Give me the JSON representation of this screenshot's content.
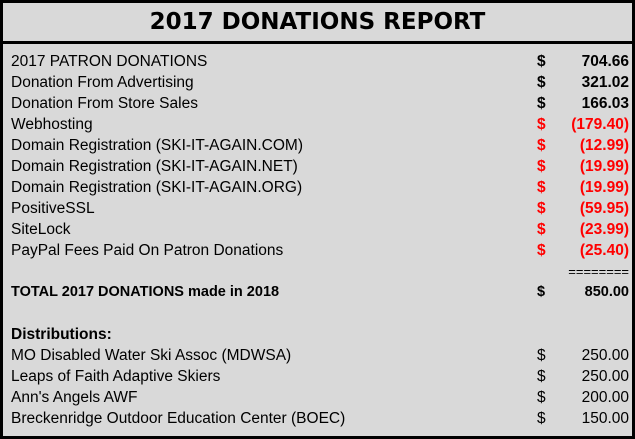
{
  "report": {
    "title": "2017 DONATIONS REPORT",
    "items": [
      {
        "label": "2017 PATRON DONATIONS",
        "currency": "$",
        "amount": "704.66"
      },
      {
        "label": "Donation From Advertising",
        "currency": "$",
        "amount": "321.02"
      },
      {
        "label": "Donation From Store Sales",
        "currency": "$",
        "amount": "166.03"
      },
      {
        "label": "Webhosting",
        "currency": "$",
        "amount": "(179.40)"
      },
      {
        "label": "Domain Registration (SKI-IT-AGAIN.COM)",
        "currency": "$",
        "amount": "(12.99)"
      },
      {
        "label": "Domain Registration (SKI-IT-AGAIN.NET)",
        "currency": "$",
        "amount": "(19.99)"
      },
      {
        "label": "Domain Registration (SKI-IT-AGAIN.ORG)",
        "currency": "$",
        "amount": "(19.99)"
      },
      {
        "label": "PositiveSSL",
        "currency": "$",
        "amount": "(59.95)"
      },
      {
        "label": "SiteLock",
        "currency": "$",
        "amount": "(23.99)"
      },
      {
        "label": "PayPal Fees Paid On Patron Donations",
        "currency": "$",
        "amount": "(25.40)"
      }
    ],
    "separator": "========",
    "total": {
      "label": "TOTAL 2017 DONATIONS made in 2018",
      "currency": "$",
      "amount": "850.00"
    },
    "distributions_heading": "Distributions:",
    "distributions": [
      {
        "label": "MO Disabled Water Ski Assoc (MDWSA)",
        "currency": "$",
        "amount": "250.00"
      },
      {
        "label": "Leaps of Faith Adaptive Skiers",
        "currency": "$",
        "amount": "250.00"
      },
      {
        "label": "Ann's Angels AWF",
        "currency": "$",
        "amount": "200.00"
      },
      {
        "label": "Breckenridge Outdoor Education Center (BOEC)",
        "currency": "$",
        "amount": "150.00"
      }
    ],
    "colors": {
      "negative": "#ff0000",
      "background": "#d9d9d9",
      "frame": "#000000"
    }
  }
}
